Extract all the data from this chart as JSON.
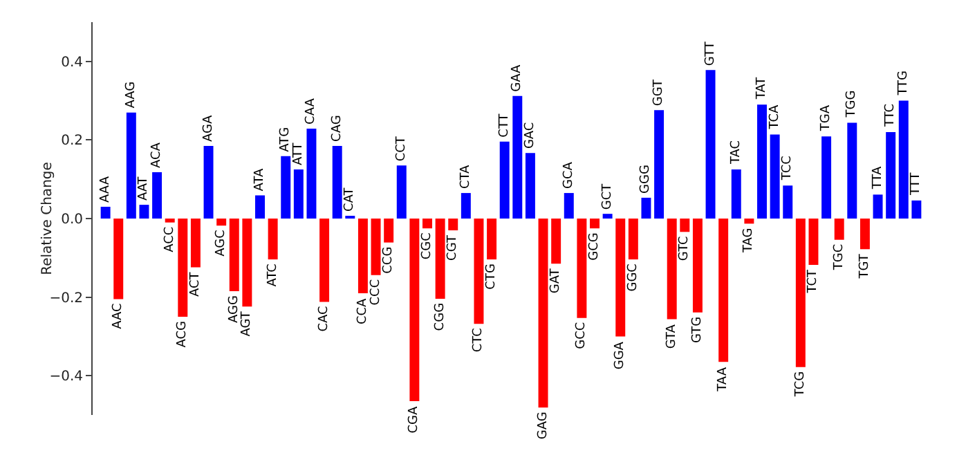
{
  "chart_data": {
    "type": "bar",
    "ylabel": "Relative Change",
    "categories": [
      "AAA",
      "AAC",
      "AAG",
      "AAT",
      "ACA",
      "ACC",
      "ACG",
      "ACT",
      "AGA",
      "AGC",
      "AGG",
      "AGT",
      "ATA",
      "ATC",
      "ATG",
      "ATT",
      "CAA",
      "CAC",
      "CAG",
      "CAT",
      "CCA",
      "CCC",
      "CCG",
      "CCT",
      "CGA",
      "CGC",
      "CGG",
      "CGT",
      "CTA",
      "CTC",
      "CTG",
      "CTT",
      "GAA",
      "GAC",
      "GAG",
      "GAT",
      "GCA",
      "GCC",
      "GCG",
      "GCT",
      "GGA",
      "GGC",
      "GGG",
      "GGT",
      "GTA",
      "GTC",
      "GTG",
      "GTT",
      "TAA",
      "TAC",
      "TAG",
      "TAT",
      "TCA",
      "TCC",
      "TCG",
      "TCT",
      "TGA",
      "TGC",
      "TGG",
      "TGT",
      "TTA",
      "TTC",
      "TTG",
      "TTT"
    ],
    "values": [
      0.03,
      -0.205,
      0.27,
      0.035,
      0.118,
      -0.01,
      -0.25,
      -0.124,
      0.185,
      -0.018,
      -0.185,
      -0.224,
      0.059,
      -0.104,
      0.159,
      0.125,
      0.229,
      -0.212,
      0.185,
      0.006,
      -0.19,
      -0.144,
      -0.061,
      0.135,
      -0.465,
      -0.025,
      -0.204,
      -0.03,
      0.065,
      -0.268,
      -0.104,
      0.196,
      0.312,
      0.167,
      -0.481,
      -0.115,
      0.065,
      -0.253,
      -0.025,
      0.012,
      -0.3,
      -0.104,
      0.053,
      0.276,
      -0.256,
      -0.034,
      -0.239,
      0.378,
      -0.365,
      0.125,
      -0.013,
      0.29,
      0.214,
      0.084,
      -0.378,
      -0.118,
      0.209,
      -0.054,
      0.244,
      -0.078,
      0.061,
      0.22,
      0.3,
      0.046
    ],
    "colors": [
      "#0000ff",
      "#ff0000",
      "#0000ff",
      "#0000ff",
      "#0000ff",
      "#ff0000",
      "#ff0000",
      "#ff0000",
      "#0000ff",
      "#ff0000",
      "#ff0000",
      "#ff0000",
      "#0000ff",
      "#ff0000",
      "#0000ff",
      "#0000ff",
      "#0000ff",
      "#ff0000",
      "#0000ff",
      "#0000ff",
      "#ff0000",
      "#ff0000",
      "#ff0000",
      "#0000ff",
      "#ff0000",
      "#ff0000",
      "#ff0000",
      "#ff0000",
      "#0000ff",
      "#ff0000",
      "#ff0000",
      "#0000ff",
      "#0000ff",
      "#0000ff",
      "#ff0000",
      "#ff0000",
      "#0000ff",
      "#ff0000",
      "#ff0000",
      "#0000ff",
      "#ff0000",
      "#ff0000",
      "#0000ff",
      "#0000ff",
      "#ff0000",
      "#ff0000",
      "#ff0000",
      "#0000ff",
      "#ff0000",
      "#0000ff",
      "#ff0000",
      "#0000ff",
      "#0000ff",
      "#0000ff",
      "#ff0000",
      "#ff0000",
      "#0000ff",
      "#ff0000",
      "#0000ff",
      "#ff0000",
      "#0000ff",
      "#0000ff",
      "#0000ff",
      "#0000ff"
    ],
    "ylim": [
      -0.5,
      0.5
    ],
    "yticks": [
      {
        "value": -0.4,
        "label": "−0.4"
      },
      {
        "value": -0.2,
        "label": "−0.2"
      },
      {
        "value": 0,
        "label": "0.0"
      },
      {
        "value": 0.2,
        "label": "0.2"
      },
      {
        "value": 0.4,
        "label": "0.4"
      }
    ],
    "tick_labels": "y",
    "grid": false
  }
}
